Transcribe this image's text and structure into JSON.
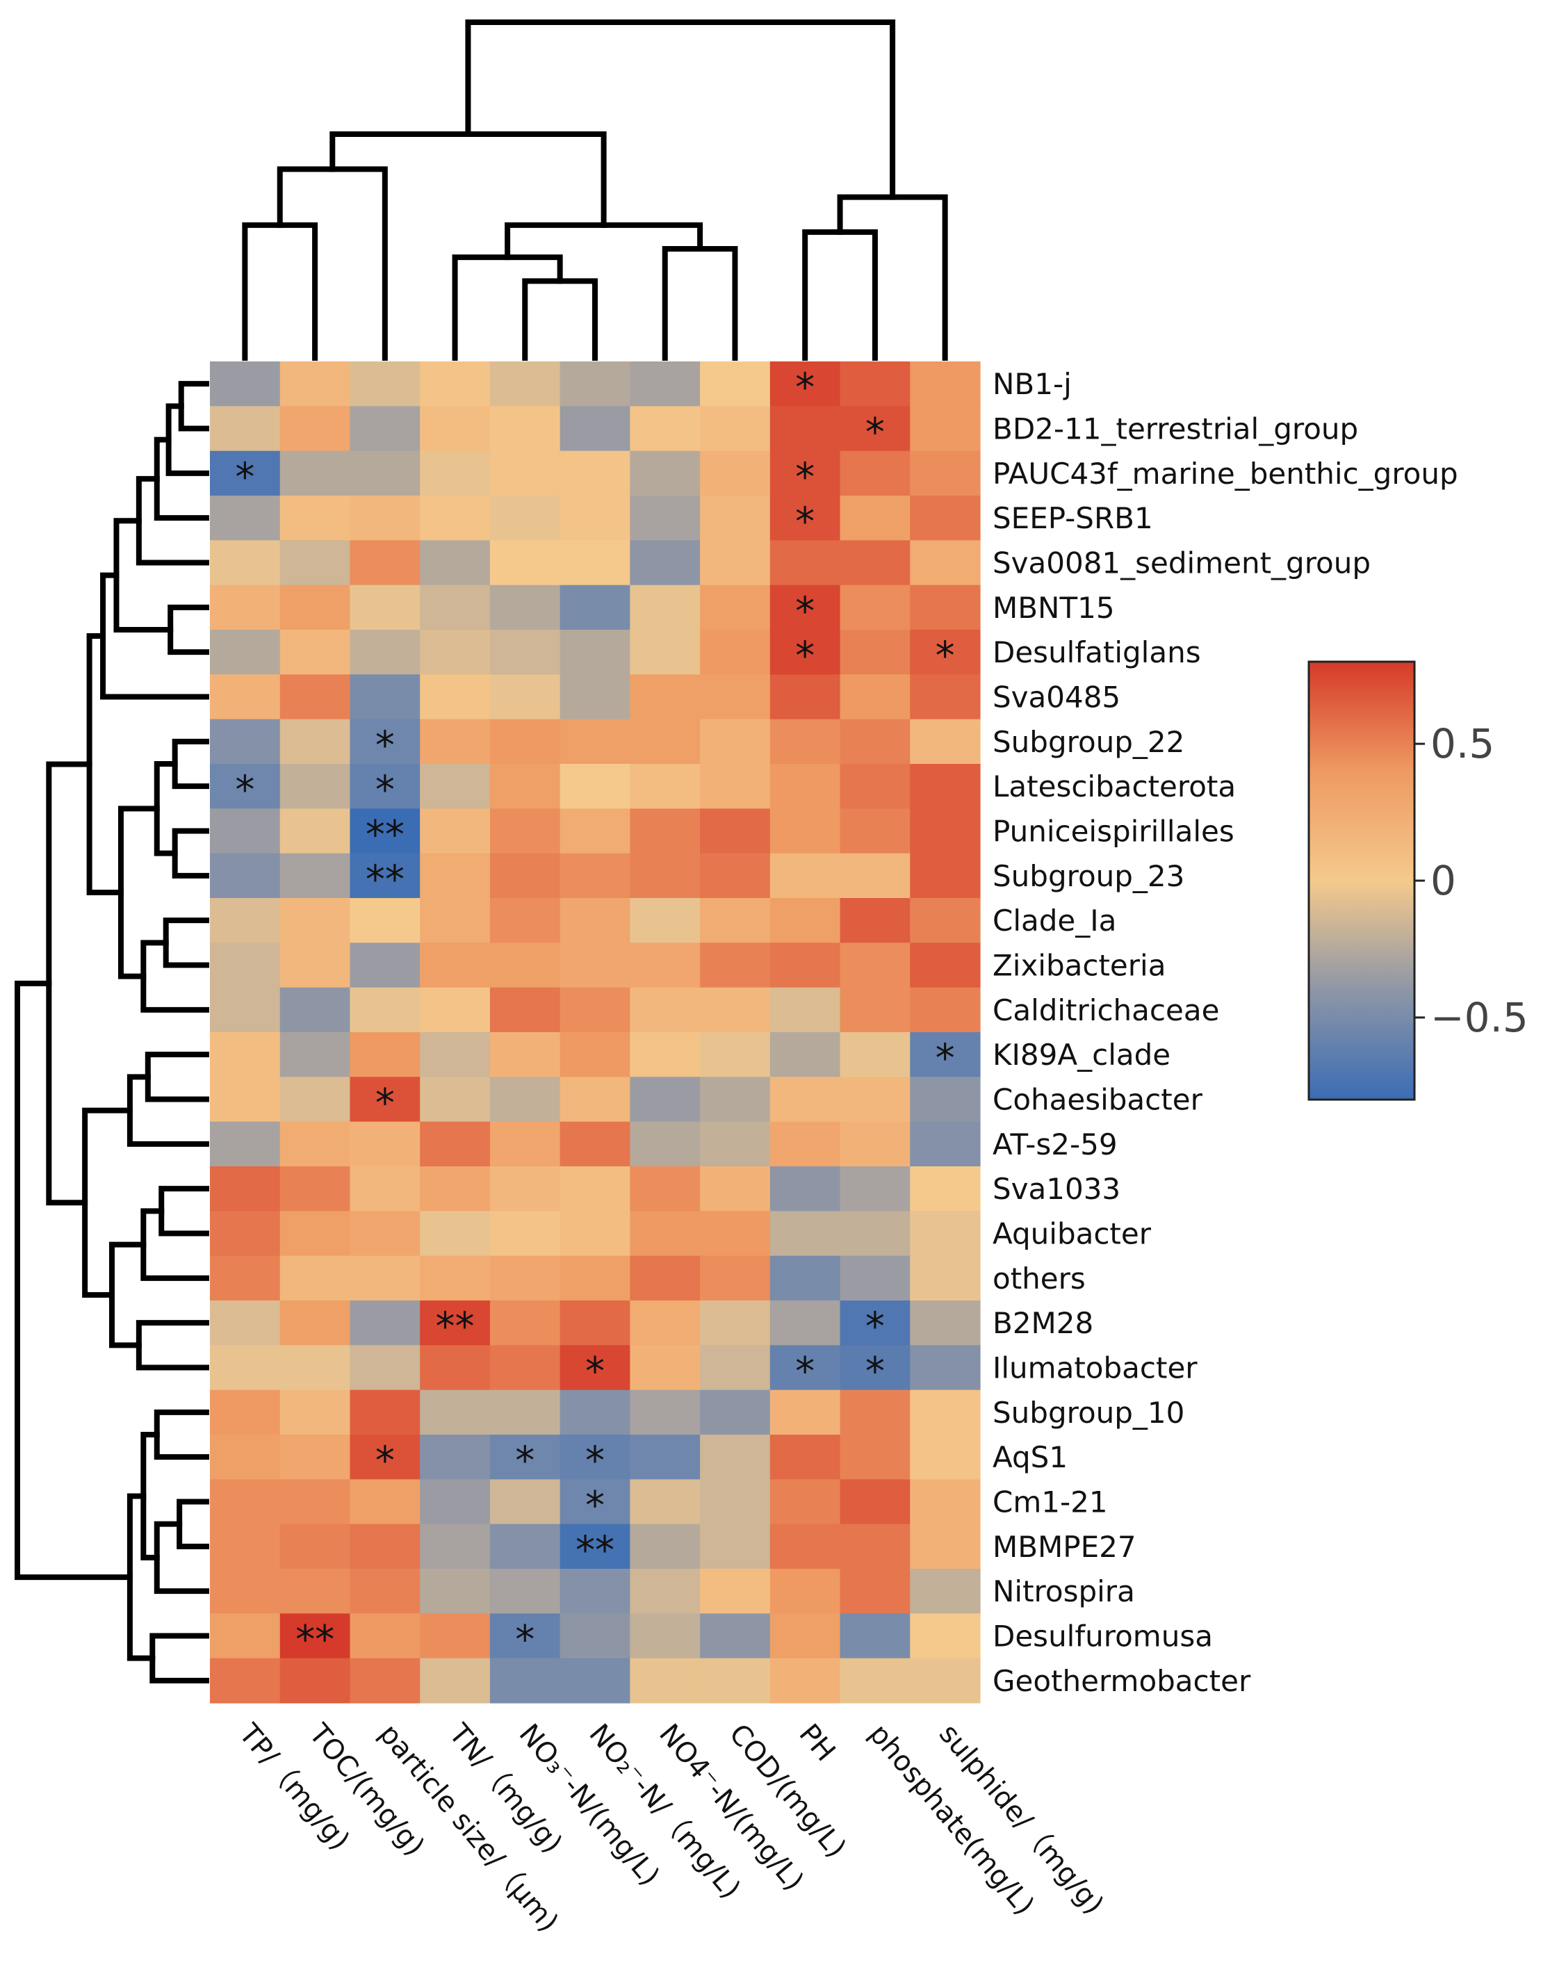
{
  "chart_data": {
    "type": "heatmap",
    "title": "",
    "columns": [
      "TP/（mg/g)",
      "TOC/(mg/g)",
      "particle size/（μm)",
      "TN/（mg/g)",
      "NO₃⁻-N/(mg/L)",
      "NO₂⁻-N/（mg/L)",
      "NO4⁻-N/(mg/L)",
      "COD/(mg/L)",
      "PH",
      "phosphate(mg/L)",
      "sulphide/（mg/g)"
    ],
    "rows": [
      "NB1-j",
      "BD2-11_terrestrial_group",
      "PAUC43f_marine_benthic_group",
      "SEEP-SRB1",
      "Sva0081_sediment_group",
      "MBNT15",
      "Desulfatiglans",
      "Sva0485",
      "Subgroup_22",
      "Latescibacterota",
      "Puniceispirillales",
      "Subgroup_23",
      "Clade_Ia",
      "Zixibacteria",
      "Calditrichaceae",
      "KI89A_clade",
      "Cohaesibacter",
      "AT-s2-59",
      "Sva1033",
      "Aquibacter",
      "others",
      "B2M28",
      "Ilumatobacter",
      "Subgroup_10",
      "AqS1",
      "Cm1-21",
      "MBMPE27",
      "Nitrospira",
      "Desulfuromusa",
      "Geothermobacter"
    ],
    "values": [
      [
        -0.35,
        0.15,
        -0.1,
        0.05,
        -0.1,
        -0.25,
        -0.3,
        0.0,
        0.75,
        0.65,
        0.4
      ],
      [
        -0.1,
        0.3,
        -0.3,
        0.1,
        0.05,
        -0.35,
        0.05,
        0.1,
        0.7,
        0.7,
        0.4
      ],
      [
        -0.7,
        -0.25,
        -0.25,
        -0.05,
        0.05,
        0.05,
        -0.25,
        0.2,
        0.7,
        0.55,
        0.45
      ],
      [
        -0.3,
        0.1,
        0.15,
        0.05,
        -0.05,
        0.05,
        -0.3,
        0.15,
        0.7,
        0.35,
        0.55
      ],
      [
        -0.05,
        -0.15,
        0.45,
        -0.25,
        0.0,
        0.0,
        -0.4,
        0.15,
        0.6,
        0.6,
        0.25
      ],
      [
        0.2,
        0.35,
        -0.05,
        -0.15,
        -0.25,
        -0.5,
        -0.05,
        0.35,
        0.75,
        0.45,
        0.55
      ],
      [
        -0.25,
        0.15,
        -0.2,
        -0.1,
        -0.15,
        -0.25,
        -0.05,
        0.4,
        0.75,
        0.5,
        0.65
      ],
      [
        0.2,
        0.5,
        -0.5,
        0.05,
        -0.05,
        -0.25,
        0.35,
        0.35,
        0.65,
        0.4,
        0.6
      ],
      [
        -0.45,
        -0.1,
        -0.55,
        0.3,
        0.4,
        0.35,
        0.35,
        0.2,
        0.45,
        0.5,
        0.15
      ],
      [
        -0.55,
        -0.2,
        -0.6,
        -0.15,
        0.35,
        0.0,
        0.1,
        0.2,
        0.4,
        0.55,
        0.65
      ],
      [
        -0.35,
        -0.05,
        -0.8,
        0.15,
        0.45,
        0.25,
        0.5,
        0.6,
        0.4,
        0.5,
        0.65
      ],
      [
        -0.45,
        -0.3,
        -0.75,
        0.25,
        0.5,
        0.45,
        0.5,
        0.55,
        0.15,
        0.15,
        0.65
      ],
      [
        -0.1,
        0.15,
        0.0,
        0.25,
        0.45,
        0.3,
        -0.05,
        0.25,
        0.35,
        0.65,
        0.5
      ],
      [
        -0.15,
        0.15,
        -0.35,
        0.35,
        0.35,
        0.3,
        0.3,
        0.5,
        0.55,
        0.45,
        0.65
      ],
      [
        -0.15,
        -0.4,
        -0.05,
        0.05,
        0.55,
        0.45,
        0.15,
        0.15,
        -0.1,
        0.45,
        0.5
      ],
      [
        0.1,
        -0.3,
        0.4,
        -0.15,
        0.2,
        0.4,
        0.05,
        -0.05,
        -0.25,
        -0.05,
        -0.6
      ],
      [
        0.1,
        -0.1,
        0.7,
        -0.1,
        -0.2,
        0.15,
        -0.35,
        -0.25,
        0.15,
        0.15,
        -0.4
      ],
      [
        -0.3,
        0.25,
        0.2,
        0.55,
        0.3,
        0.55,
        -0.25,
        -0.2,
        0.3,
        0.2,
        -0.45
      ],
      [
        0.6,
        0.5,
        0.15,
        0.3,
        0.15,
        0.1,
        0.45,
        0.2,
        -0.4,
        -0.3,
        0.0
      ],
      [
        0.55,
        0.35,
        0.3,
        -0.05,
        0.05,
        0.1,
        0.4,
        0.4,
        -0.2,
        -0.2,
        -0.05
      ],
      [
        0.5,
        0.15,
        0.15,
        0.25,
        0.3,
        0.35,
        0.55,
        0.45,
        -0.5,
        -0.35,
        -0.05
      ],
      [
        -0.1,
        0.35,
        -0.35,
        0.75,
        0.45,
        0.6,
        0.25,
        -0.1,
        -0.3,
        -0.7,
        -0.25
      ],
      [
        -0.05,
        -0.05,
        -0.15,
        0.6,
        0.55,
        0.75,
        0.2,
        -0.15,
        -0.6,
        -0.65,
        -0.45
      ],
      [
        0.4,
        0.15,
        0.65,
        -0.2,
        -0.2,
        -0.45,
        -0.3,
        -0.4,
        0.2,
        0.5,
        0.05
      ],
      [
        0.35,
        0.3,
        0.7,
        -0.45,
        -0.55,
        -0.6,
        -0.55,
        -0.15,
        0.6,
        0.5,
        0.05
      ],
      [
        0.45,
        0.45,
        0.35,
        -0.35,
        -0.15,
        -0.55,
        -0.1,
        -0.15,
        0.5,
        0.65,
        0.2
      ],
      [
        0.45,
        0.5,
        0.55,
        -0.3,
        -0.45,
        -0.75,
        -0.25,
        -0.15,
        0.55,
        0.55,
        0.2
      ],
      [
        0.45,
        0.45,
        0.5,
        -0.25,
        -0.3,
        -0.45,
        -0.15,
        0.1,
        0.4,
        0.55,
        -0.2
      ],
      [
        0.35,
        0.8,
        0.4,
        0.45,
        -0.6,
        -0.4,
        -0.2,
        -0.4,
        0.35,
        -0.5,
        0.0
      ],
      [
        0.55,
        0.65,
        0.55,
        -0.1,
        -0.5,
        -0.5,
        -0.05,
        -0.05,
        0.2,
        -0.05,
        -0.05
      ]
    ],
    "significance": [
      [
        "",
        "",
        "",
        "",
        "",
        "",
        "",
        "",
        "*",
        "",
        ""
      ],
      [
        "",
        "",
        "",
        "",
        "",
        "",
        "",
        "",
        "",
        "*",
        ""
      ],
      [
        "*",
        "",
        "",
        "",
        "",
        "",
        "",
        "",
        "*",
        "",
        ""
      ],
      [
        "",
        "",
        "",
        "",
        "",
        "",
        "",
        "",
        "*",
        "",
        ""
      ],
      [
        "",
        "",
        "",
        "",
        "",
        "",
        "",
        "",
        "",
        "",
        ""
      ],
      [
        "",
        "",
        "",
        "",
        "",
        "",
        "",
        "",
        "*",
        "",
        ""
      ],
      [
        "",
        "",
        "",
        "",
        "",
        "",
        "",
        "",
        "*",
        "",
        "*"
      ],
      [
        "",
        "",
        "",
        "",
        "",
        "",
        "",
        "",
        "",
        "",
        ""
      ],
      [
        "",
        "",
        "*",
        "",
        "",
        "",
        "",
        "",
        "",
        "",
        ""
      ],
      [
        "*",
        "",
        "*",
        "",
        "",
        "",
        "",
        "",
        "",
        "",
        ""
      ],
      [
        "",
        "",
        "**",
        "",
        "",
        "",
        "",
        "",
        "",
        "",
        ""
      ],
      [
        "",
        "",
        "**",
        "",
        "",
        "",
        "",
        "",
        "",
        "",
        ""
      ],
      [
        "",
        "",
        "",
        "",
        "",
        "",
        "",
        "",
        "",
        "",
        ""
      ],
      [
        "",
        "",
        "",
        "",
        "",
        "",
        "",
        "",
        "",
        "",
        ""
      ],
      [
        "",
        "",
        "",
        "",
        "",
        "",
        "",
        "",
        "",
        "",
        ""
      ],
      [
        "",
        "",
        "",
        "",
        "",
        "",
        "",
        "",
        "",
        "",
        "*"
      ],
      [
        "",
        "",
        "*",
        "",
        "",
        "",
        "",
        "",
        "",
        "",
        ""
      ],
      [
        "",
        "",
        "",
        "",
        "",
        "",
        "",
        "",
        "",
        "",
        ""
      ],
      [
        "",
        "",
        "",
        "",
        "",
        "",
        "",
        "",
        "",
        "",
        ""
      ],
      [
        "",
        "",
        "",
        "",
        "",
        "",
        "",
        "",
        "",
        "",
        ""
      ],
      [
        "",
        "",
        "",
        "",
        "",
        "",
        "",
        "",
        "",
        "",
        ""
      ],
      [
        "",
        "",
        "",
        "**",
        "",
        "",
        "",
        "",
        "",
        "*",
        ""
      ],
      [
        "",
        "",
        "",
        "",
        "",
        "*",
        "",
        "",
        "*",
        "*",
        ""
      ],
      [
        "",
        "",
        "",
        "",
        "",
        "",
        "",
        "",
        "",
        "",
        ""
      ],
      [
        "",
        "",
        "*",
        "",
        "*",
        "*",
        "",
        "",
        "",
        "",
        ""
      ],
      [
        "",
        "",
        "",
        "",
        "",
        "*",
        "",
        "",
        "",
        "",
        ""
      ],
      [
        "",
        "",
        "",
        "",
        "",
        "**",
        "",
        "",
        "",
        "",
        ""
      ],
      [
        "",
        "",
        "",
        "",
        "",
        "",
        "",
        "",
        "",
        "",
        ""
      ],
      [
        "",
        "**",
        "",
        "",
        "*",
        "",
        "",
        "",
        "",
        "",
        ""
      ],
      [
        "",
        "",
        "",
        "",
        "",
        "",
        "",
        "",
        "",
        "",
        ""
      ]
    ],
    "value_range": [
      -0.8,
      0.8
    ],
    "colorbar": {
      "ticks": [
        0.5,
        0,
        -0.5
      ],
      "tick_labels": [
        "0.5",
        "0",
        "−0.5"
      ],
      "colors": [
        "#3a6fb8",
        "#e8c48a",
        "#d73027"
      ],
      "mid_color": "#f7c98a",
      "low_color": "#3b6db5",
      "high_color": "#d63a2a",
      "low_mid_color": "#b8ad9a"
    },
    "col_dendrogram": {
      "leaf_order": [
        0,
        1,
        2,
        3,
        4,
        5,
        6,
        7,
        8,
        9,
        10
      ],
      "merges": [
        [
          4,
          5,
          0.55
        ],
        [
          3,
          11,
          0.72
        ],
        [
          6,
          7,
          0.78
        ],
        [
          12,
          13,
          0.95
        ],
        [
          8,
          9,
          0.9
        ],
        [
          15,
          10,
          1.15
        ],
        [
          0,
          1,
          0.95
        ],
        [
          17,
          2,
          1.35
        ],
        [
          18,
          14,
          1.6
        ],
        [
          19,
          16,
          2.4
        ]
      ]
    },
    "row_dendrogram": {
      "merges": [
        [
          0,
          1,
          0.28
        ],
        [
          30,
          2,
          0.42
        ],
        [
          31,
          3,
          0.55
        ],
        [
          5,
          6,
          0.4
        ],
        [
          32,
          4,
          0.75
        ],
        [
          33,
          34,
          1.0
        ],
        [
          35,
          7,
          1.15
        ],
        [
          8,
          9,
          0.35
        ],
        [
          10,
          11,
          0.35
        ],
        [
          37,
          38,
          0.55
        ],
        [
          12,
          13,
          0.45
        ],
        [
          40,
          14,
          0.7
        ],
        [
          39,
          41,
          0.95
        ],
        [
          36,
          42,
          1.3
        ],
        [
          15,
          16,
          0.65
        ],
        [
          44,
          17,
          0.85
        ],
        [
          18,
          19,
          0.5
        ],
        [
          46,
          20,
          0.7
        ],
        [
          21,
          22,
          0.75
        ],
        [
          47,
          48,
          1.05
        ],
        [
          45,
          49,
          1.35
        ],
        [
          43,
          50,
          1.75
        ],
        [
          23,
          24,
          0.55
        ],
        [
          25,
          26,
          0.3
        ],
        [
          53,
          27,
          0.55
        ],
        [
          52,
          54,
          0.7
        ],
        [
          28,
          29,
          0.6
        ],
        [
          55,
          56,
          0.85
        ],
        [
          51,
          57,
          2.1
        ]
      ]
    }
  }
}
